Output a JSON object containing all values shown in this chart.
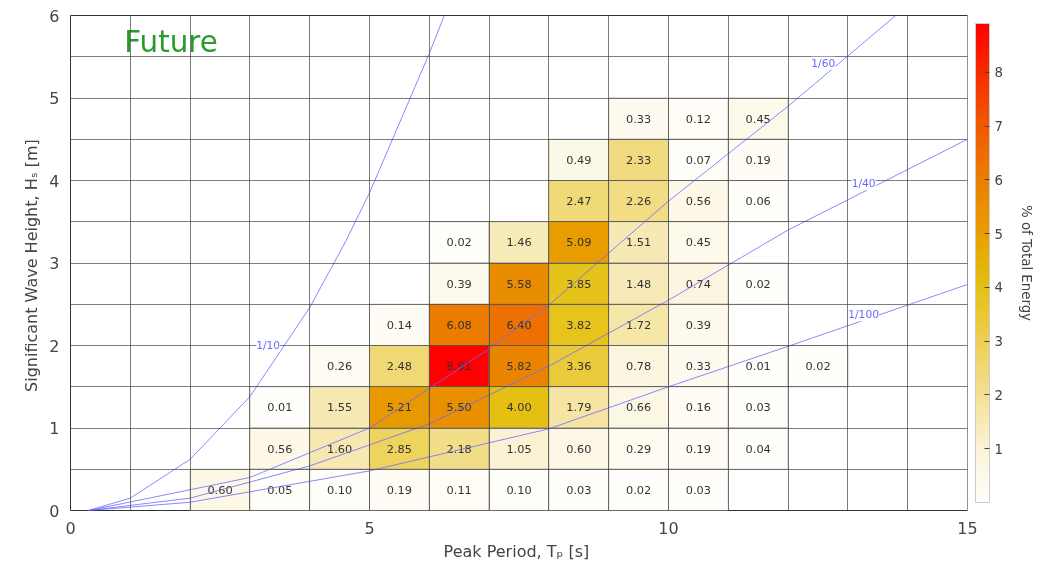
{
  "chart_data": {
    "type": "heatmap",
    "xlabel": "Peak Period,  Tₚ [s]",
    "ylabel": "Significant Wave Height,  Hₛ [m]",
    "clabel": "% of Total Energy",
    "x": [
      0.5,
      1.5,
      2.5,
      3.5,
      4.5,
      5.5,
      6.5,
      7.5,
      8.5,
      9.5,
      10.5,
      11.5,
      12.5,
      13.5,
      14.5
    ],
    "y": [
      4.75,
      4.25,
      3.75,
      3.25,
      2.75,
      2.25,
      1.75,
      1.25,
      0.75,
      0.25
    ],
    "xlim": [
      0,
      15
    ],
    "ylim": [
      0,
      6
    ],
    "xticks": [
      0,
      5,
      10,
      15
    ],
    "yticks": [
      0,
      1,
      2,
      3,
      4,
      5,
      6
    ],
    "clim": [
      0,
      8.91
    ],
    "cticks": [
      1,
      2,
      3,
      4,
      5,
      6,
      7,
      8
    ],
    "cells": [
      [
        null,
        null,
        null,
        null,
        null,
        null,
        null,
        null,
        null,
        0.33,
        0.12,
        0.45,
        null,
        null,
        null
      ],
      [
        null,
        null,
        null,
        null,
        null,
        null,
        null,
        null,
        0.49,
        2.33,
        0.07,
        0.19,
        null,
        null,
        null
      ],
      [
        null,
        null,
        null,
        null,
        null,
        null,
        null,
        null,
        2.47,
        2.26,
        0.56,
        0.06,
        null,
        null,
        null
      ],
      [
        null,
        null,
        null,
        null,
        null,
        null,
        0.02,
        1.46,
        5.09,
        1.51,
        0.45,
        null,
        null,
        null,
        null
      ],
      [
        null,
        null,
        null,
        null,
        null,
        null,
        0.39,
        5.58,
        3.85,
        1.48,
        0.74,
        0.02,
        null,
        null,
        null
      ],
      [
        null,
        null,
        null,
        null,
        null,
        0.14,
        6.08,
        6.4,
        3.82,
        1.72,
        0.39,
        null,
        null,
        null,
        null
      ],
      [
        null,
        null,
        null,
        null,
        0.26,
        2.48,
        8.91,
        5.82,
        3.36,
        0.78,
        0.33,
        0.01,
        0.02,
        null,
        null
      ],
      [
        null,
        null,
        null,
        0.01,
        1.55,
        5.21,
        5.5,
        4.0,
        1.79,
        0.66,
        0.16,
        0.03,
        null,
        null,
        null
      ],
      [
        null,
        null,
        null,
        0.56,
        1.6,
        2.85,
        2.18,
        1.05,
        0.6,
        0.29,
        0.19,
        0.04,
        null,
        null,
        null
      ],
      [
        null,
        null,
        0.6,
        0.05,
        0.1,
        0.19,
        0.11,
        0.1,
        0.03,
        0.02,
        0.03,
        null,
        null,
        null,
        null
      ]
    ],
    "cell_labels": [
      [
        null,
        null,
        null,
        null,
        null,
        null,
        null,
        null,
        null,
        "0.33",
        "0.12",
        "0.45",
        null,
        null,
        null
      ],
      [
        null,
        null,
        null,
        null,
        null,
        null,
        null,
        null,
        "0.49",
        "2.33",
        "0.07",
        "0.19",
        null,
        null,
        null
      ],
      [
        null,
        null,
        null,
        null,
        null,
        null,
        null,
        null,
        "2.47",
        "2.26",
        "0.56",
        "0.06",
        null,
        null,
        null
      ],
      [
        null,
        null,
        null,
        null,
        null,
        null,
        "0.02",
        "1.46",
        "5.09",
        "1.51",
        "0.45",
        null,
        null,
        null,
        null
      ],
      [
        null,
        null,
        null,
        null,
        null,
        null,
        "0.39",
        "5.58",
        "3.85",
        "1.48",
        "0.74",
        "0.02",
        null,
        null,
        null
      ],
      [
        null,
        null,
        null,
        null,
        null,
        "0.14",
        "6.08",
        "6.40",
        "3.82",
        "1.72",
        "0.39",
        null,
        null,
        null,
        null
      ],
      [
        null,
        null,
        null,
        null,
        "0.26",
        "2.48",
        "8.91",
        "5.82",
        "3.36",
        "0.78",
        "0.33",
        "0.01",
        "0.02",
        null,
        null
      ],
      [
        null,
        null,
        null,
        "0.01",
        "1.55",
        "5.21",
        "5.50",
        "4.00",
        "1.79",
        "0.66",
        "0.16",
        "0.03",
        null,
        null,
        null
      ],
      [
        null,
        null,
        null,
        "0.56",
        "1.60",
        "2.85",
        "2.18",
        "1.05",
        "0.60",
        "0.29",
        "0.19",
        "0.04",
        null,
        null,
        null
      ],
      [
        null,
        null,
        "0.60",
        "0.05",
        "0.10",
        "0.19",
        "0.11",
        "0.10",
        "0.03",
        "0.02",
        "0.03",
        null,
        null,
        null,
        null
      ]
    ],
    "grid": true,
    "series": [
      {
        "name": "1/10",
        "type": "line",
        "color": "#6b6bff",
        "x": [
          0.3,
          1,
          2,
          3,
          4,
          4.6,
          5,
          6,
          6.25
        ],
        "values": [
          0,
          0.15,
          0.62,
          1.38,
          2.46,
          3.26,
          3.85,
          5.54,
          6.0
        ]
      },
      {
        "name": "1/60",
        "type": "line",
        "color": "#6b6bff",
        "x": [
          0.3,
          3,
          5,
          7,
          8,
          10,
          12,
          13.8
        ],
        "values": [
          0,
          0.4,
          1.0,
          1.96,
          2.49,
          3.75,
          4.9,
          6.0
        ]
      },
      {
        "name": "1/40",
        "type": "line",
        "color": "#6b6bff",
        "x": [
          0.3,
          2,
          4,
          6,
          8,
          10,
          12,
          15
        ],
        "values": [
          0,
          0.15,
          0.54,
          1.05,
          1.75,
          2.55,
          3.4,
          4.5
        ]
      },
      {
        "name": "1/100",
        "type": "line",
        "color": "#6b6bff",
        "x": [
          0.3,
          2,
          5,
          8,
          10,
          12,
          15
        ],
        "values": [
          0,
          0.1,
          0.48,
          0.99,
          1.5,
          1.99,
          2.74
        ]
      }
    ],
    "annotations": [
      "Future"
    ]
  }
}
